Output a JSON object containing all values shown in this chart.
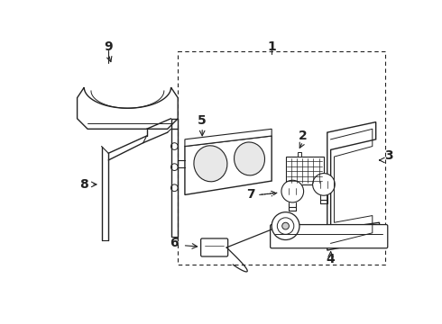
{
  "bg_color": "#ffffff",
  "line_color": "#222222",
  "fig_width": 4.9,
  "fig_height": 3.6,
  "dpi": 100
}
